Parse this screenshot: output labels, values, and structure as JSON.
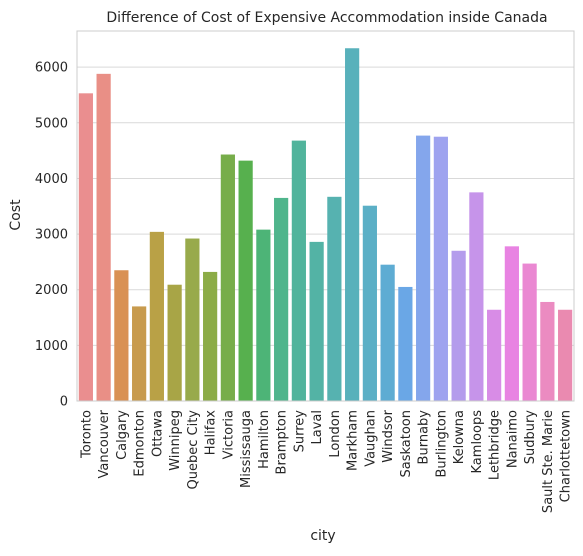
{
  "chart_data": {
    "type": "bar",
    "title": "Difference of Cost of Expensive Accommodation inside Canada",
    "xlabel": "city",
    "ylabel": "Cost",
    "ylim": [
      0,
      6650
    ],
    "yticks": [
      0,
      1000,
      2000,
      3000,
      4000,
      5000,
      6000
    ],
    "ytick_labels": [
      "0",
      "1000",
      "2000",
      "3000",
      "4000",
      "5000",
      "6000"
    ],
    "grid": "horizontal",
    "categories": [
      "Toronto",
      "Vancouver",
      "Calgary",
      "Edmonton",
      "Ottawa",
      "Winnipeg",
      "Quebec City",
      "Halifax",
      "Victoria",
      "Mississauga",
      "Hamilton",
      "Brampton",
      "Surrey",
      "Laval",
      "London",
      "Markham",
      "Vaughan",
      "Windsor",
      "Saskatoon",
      "Burnaby",
      "Burlington",
      "Kelowna",
      "Kamloops",
      "Lethbridge",
      "Nanaimo",
      "Sudbury",
      "Sault Ste. Marie",
      "Charlottetown"
    ],
    "values": [
      5530,
      5880,
      2350,
      1700,
      3040,
      2090,
      2920,
      2320,
      4430,
      4320,
      3080,
      3650,
      4680,
      2860,
      3670,
      6340,
      3510,
      2450,
      2050,
      4770,
      4750,
      2700,
      3750,
      1640,
      2780,
      2470,
      1780,
      1640
    ],
    "colors": [
      "#ea8e8f",
      "#e98f86",
      "#d99154",
      "#c89b4e",
      "#b9a146",
      "#a8a546",
      "#98aa4b",
      "#8cac47",
      "#77ad4a",
      "#57b04e",
      "#4db477",
      "#4fb58c",
      "#51b49c",
      "#53b3a5",
      "#56b2b0",
      "#58b1bb",
      "#5bafc6",
      "#5eacd3",
      "#6aa7e6",
      "#84a6ec",
      "#9ea3ef",
      "#b49cec",
      "#c694ea",
      "#d88ce6",
      "#e883e2",
      "#ea88d2",
      "#eb8bc1",
      "#ea8ab0"
    ]
  }
}
